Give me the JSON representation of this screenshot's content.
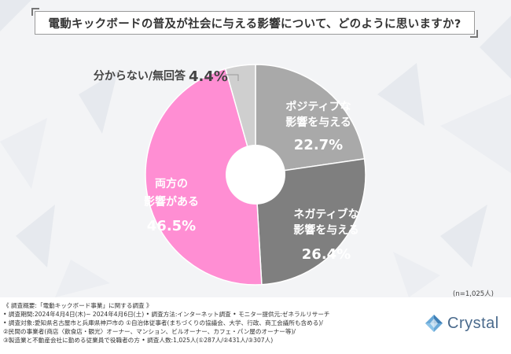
{
  "title": "電動キックボードの普及が社会に与える影響について、どのように思いますか?",
  "note": "(n=1,025人)",
  "colors": {
    "positive": "#a9a9a9",
    "negative": "#7f7f7f",
    "both": "#ff8ed3",
    "unknown": "#cfcfcf"
  },
  "chart_data": {
    "type": "pie",
    "donut": true,
    "title": "電動キックボードの普及が社会に与える影響について、どのように思いますか?",
    "slices": [
      {
        "label_lines": [
          "ポジティブな",
          "影響を与える"
        ],
        "value_label": "22.7%",
        "value": 22.7
      },
      {
        "label_lines": [
          "ネガティブな",
          "影響を与える"
        ],
        "value_label": "26.4%",
        "value": 26.4
      },
      {
        "label_lines": [
          "両方の",
          "影響がある"
        ],
        "value_label": "46.5%",
        "value": 46.5
      },
      {
        "label_lines": [
          "分からない/無回答"
        ],
        "value_label": "4.4%",
        "value": 4.4
      }
    ]
  },
  "footer": {
    "lines": [
      "《 調査概要:「電動キックボード事業」に関する調査 》",
      "• 調査期間:2024年4月4日(木)~ 2024年4月6日(土)    • 調査方法:インターネット調査    • モニター提供元:ゼネラルリサーチ",
      "• 調査対象:愛知県名古屋市と兵庫県神戸市の ①自治体従事者(まちづくりの協議会、大学、行政、商工会議所も含める)/",
      "                    ②民間の事業者(商店〈飲食店・観光〉オーナー、マンション、ビルオーナー、カフェ・パン屋のオーナー等)/",
      "                    ③製造業と不動産会社に勤める従業員で役職者の方                • 調査人数:1,025人(①287人/②431人/③307人)"
    ],
    "brand": "Crystal"
  }
}
